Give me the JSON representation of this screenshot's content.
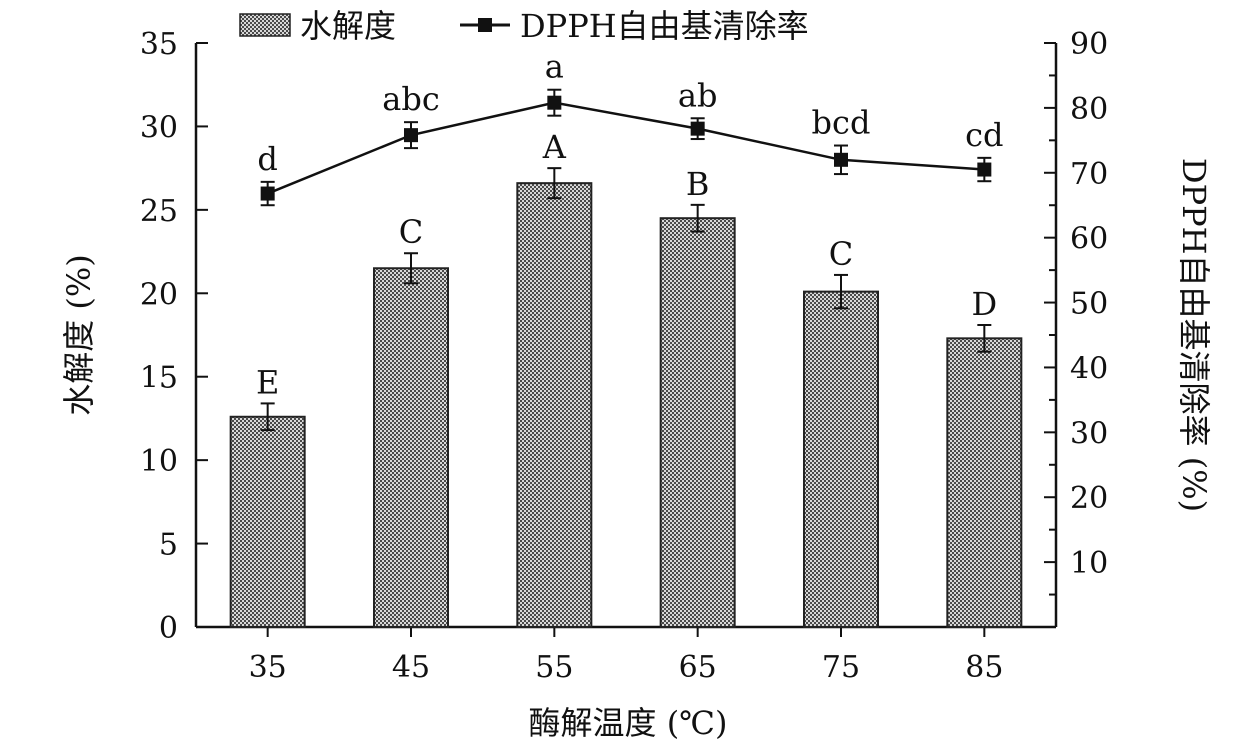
{
  "chart_data": {
    "type": "bar+line",
    "categories": [
      "35",
      "45",
      "55",
      "65",
      "75",
      "85"
    ],
    "xlabel": "酶解温度 (℃)",
    "y_left": {
      "label": "水解度 (%)",
      "range": [
        0,
        35
      ],
      "ticks": [
        0,
        5,
        10,
        15,
        20,
        25,
        30,
        35
      ]
    },
    "y_right": {
      "label": "DPPH自由基清除率 (%)",
      "range": [
        0,
        90
      ],
      "ticks": [
        10,
        20,
        30,
        40,
        50,
        60,
        70,
        80,
        90
      ]
    },
    "legend": {
      "position": "top-center"
    },
    "series": [
      {
        "name": "水解度",
        "type": "bar",
        "axis": "left",
        "values": [
          12.6,
          21.5,
          26.6,
          24.5,
          20.1,
          17.3
        ],
        "errors": [
          0.8,
          0.9,
          0.9,
          0.8,
          1.0,
          0.8
        ],
        "labels": [
          "E",
          "C",
          "A",
          "B",
          "C",
          "D"
        ]
      },
      {
        "name": "DPPH自由基清除率",
        "type": "line",
        "axis": "right",
        "values": [
          66.8,
          75.8,
          80.8,
          76.8,
          72.0,
          70.5
        ],
        "errors": [
          1.8,
          2.0,
          2.0,
          1.6,
          2.2,
          1.8
        ],
        "labels": [
          "d",
          "abc",
          "a",
          "ab",
          "bcd",
          "cd"
        ]
      }
    ]
  }
}
